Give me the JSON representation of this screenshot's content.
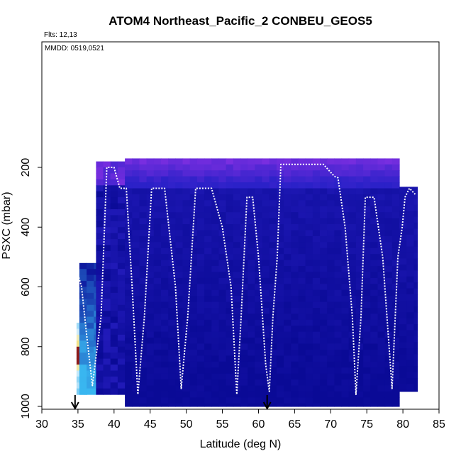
{
  "chart_data": {
    "type": "heatmap",
    "title": "ATOM4 Northeast_Pacific_2 CONBEU_GEOS5",
    "annotations": {
      "flights": "Flts: 12,13",
      "dates": "MMDD: 0519,0521"
    },
    "xlabel": "Latitude (deg N)",
    "ylabel": "PSXC (mbar)",
    "xlim": [
      30,
      85
    ],
    "ylim": [
      1000,
      0
    ],
    "y_reversed": true,
    "x_ticks": [
      30,
      35,
      40,
      45,
      50,
      55,
      60,
      65,
      70,
      75,
      80,
      85
    ],
    "y_ticks": [
      200,
      400,
      600,
      800,
      1000
    ],
    "grid": false,
    "legend": "none",
    "colors": {
      "low": "#0a0a96",
      "mid_low": "#2b21c8",
      "upper": "#7a2ee0",
      "light_blue": "#39b6f0",
      "pale": "#e8f4fa",
      "yellow": "#f5e070",
      "dark_red": "#8b1a1a",
      "flight_track": "#ffffff"
    },
    "columns": [
      {
        "lat_from": 34.8,
        "lat_to": 36.2,
        "p_top": 720,
        "p_bottom": 960,
        "level": "mixed"
      },
      {
        "lat_from": 35.2,
        "lat_to": 37.5,
        "p_top": 520,
        "p_bottom": 960,
        "level": "light"
      },
      {
        "lat_from": 37.5,
        "lat_to": 41.5,
        "p_top": 180,
        "p_bottom": 960,
        "level": "blue"
      },
      {
        "lat_from": 41.5,
        "lat_to": 79.5,
        "p_top": 170,
        "p_bottom": 1000,
        "level": "dark"
      },
      {
        "lat_from": 79.5,
        "lat_to": 82.0,
        "p_top": 265,
        "p_bottom": 950,
        "level": "dark"
      }
    ],
    "flight_track": {
      "lat": [
        34.9,
        35.5,
        36.2,
        37.0,
        38.2,
        39.0,
        40.0,
        40.8,
        41.7,
        42.5,
        43.3,
        44.2,
        45.2,
        47.0,
        48.5,
        49.3,
        50.2,
        51.3,
        53.5,
        55.0,
        56.2,
        57.0,
        57.6,
        58.4,
        59.2,
        60.0,
        61.0,
        61.5,
        62.0,
        62.6,
        63.1,
        63.6,
        66.0,
        69.0,
        70.5,
        71.0,
        72.0,
        73.0,
        73.5,
        74.2,
        74.8,
        76.0,
        77.2,
        78.5,
        79.3,
        79.9,
        80.3,
        80.9,
        81.3,
        81.7
      ],
      "pressure": [
        550,
        600,
        760,
        930,
        700,
        200,
        200,
        270,
        270,
        600,
        960,
        700,
        270,
        270,
        600,
        940,
        700,
        270,
        270,
        400,
        600,
        960,
        700,
        300,
        300,
        500,
        860,
        950,
        700,
        500,
        190,
        190,
        190,
        190,
        230,
        235,
        400,
        700,
        960,
        700,
        300,
        300,
        500,
        940,
        500,
        400,
        300,
        270,
        280,
        290
      ]
    },
    "marked_latitudes": [
      34.6,
      61.2
    ]
  }
}
